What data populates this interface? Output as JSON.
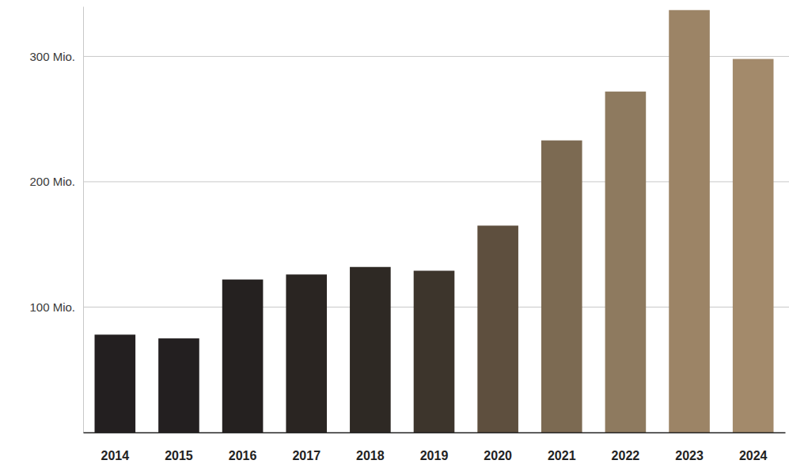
{
  "chart_data": {
    "type": "bar",
    "categories": [
      "2014",
      "2015",
      "2016",
      "2017",
      "2018",
      "2019",
      "2020",
      "2021",
      "2022",
      "2023",
      "2024"
    ],
    "values": [
      78,
      75,
      122,
      126,
      132,
      129,
      165,
      233,
      272,
      337,
      298
    ],
    "colors": [
      "#231f20",
      "#231f20",
      "#252120",
      "#2a2522",
      "#2e2924",
      "#3d352c",
      "#5e4f3e",
      "#7c6a52",
      "#8e7a5f",
      "#9c8466",
      "#a38a6b"
    ],
    "ylim": [
      0,
      340
    ],
    "yticks": [
      {
        "value": 100,
        "label": "100 Mio."
      },
      {
        "value": 200,
        "label": "200 Mio."
      },
      {
        "value": 300,
        "label": "300 Mio."
      }
    ],
    "grid": true
  }
}
